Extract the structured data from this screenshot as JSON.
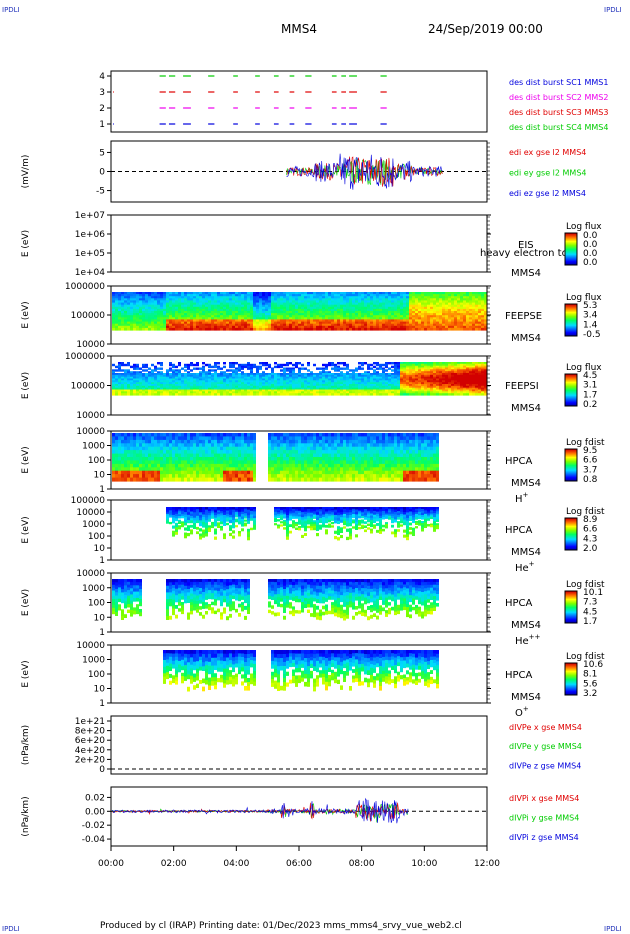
{
  "corner_label": "IPDLI",
  "header": {
    "spacecraft": "MMS4",
    "date": "24/Sep/2019 00:00"
  },
  "footer": {
    "text": "Produced by cl (IRAP)   Printing date: 01/Dec/2023   mms_mms4_srvy_vue_web2.cl"
  },
  "colors": {
    "red": "#e00000",
    "magenta": "#ee00ee",
    "green": "#00cc00",
    "blue": "#0000dd"
  },
  "chart_data": [
    {
      "type": "timeline",
      "title": "",
      "yticks": [
        "1",
        "2",
        "3",
        "4"
      ],
      "legend": [
        {
          "text": "des dist burst SC1 MMS1",
          "color": "#0000dd"
        },
        {
          "text": "des dist burst SC2 MMS2",
          "color": "#ee00ee"
        },
        {
          "text": "des dist burst SC3 MMS3",
          "color": "#e00000"
        },
        {
          "text": "des dist burst SC4 MMS4",
          "color": "#00cc00"
        }
      ],
      "segments_hours": [
        [
          1.55,
          1.75
        ],
        [
          1.85,
          2.05
        ],
        [
          2.3,
          2.55
        ],
        [
          3.1,
          3.3
        ],
        [
          3.9,
          4.05
        ],
        [
          4.6,
          4.75
        ],
        [
          5.2,
          5.35
        ],
        [
          5.7,
          5.85
        ],
        [
          6.2,
          6.4
        ],
        [
          7.05,
          7.2
        ],
        [
          7.35,
          7.5
        ],
        [
          7.6,
          7.85
        ],
        [
          8.6,
          8.8
        ]
      ]
    },
    {
      "type": "line",
      "ylabel": "(mV/m)",
      "yticks": [
        "5",
        "0",
        "-5"
      ],
      "ylim": [
        -8,
        8
      ],
      "legend": [
        {
          "text": "edi ex gse l2 MMS4",
          "color": "#e00000"
        },
        {
          "text": "edi ey gse l2 MMS4",
          "color": "#00cc00"
        },
        {
          "text": "edi ez gse l2 MMS4",
          "color": "#0000dd"
        }
      ],
      "active_hours": [
        5.6,
        10.6
      ]
    },
    {
      "type": "heatmap",
      "ylabel": "E (eV)",
      "yticks": [
        "1e+07",
        "1e+06",
        "1e+05",
        "1e+04"
      ],
      "instrument": "EIS",
      "overlay": "heavy electron to",
      "spacecraft": "MMS4",
      "colorbar_title": "Log flux",
      "colorbar_ticks": [
        "0.0",
        "0.0",
        "0.0",
        "0.0"
      ]
    },
    {
      "type": "heatmap",
      "ylabel": "E (eV)",
      "yticks": [
        "1000000",
        "100000",
        "10000"
      ],
      "instrument": "FEEPSE",
      "spacecraft": "MMS4",
      "colorbar_title": "Log flux",
      "colorbar_ticks": [
        "5.3",
        "3.4",
        "1.4",
        "-0.5"
      ]
    },
    {
      "type": "heatmap",
      "ylabel": "E (eV)",
      "yticks": [
        "1000000",
        "100000",
        "10000"
      ],
      "instrument": "FEEPSI",
      "spacecraft": "MMS4",
      "colorbar_title": "Log flux",
      "colorbar_ticks": [
        "4.5",
        "3.1",
        "1.7",
        "0.2"
      ]
    },
    {
      "type": "heatmap",
      "ylabel": "E (eV)",
      "yticks": [
        "10000",
        "1000",
        "100",
        "10",
        "1"
      ],
      "instrument": "HPCA",
      "spacecraft": "MMS4",
      "species": "H",
      "species_sup": "+",
      "colorbar_title": "Log fdist",
      "colorbar_ticks": [
        "9.5",
        "6.6",
        "3.7",
        "0.8"
      ]
    },
    {
      "type": "heatmap",
      "ylabel": "E (eV)",
      "yticks": [
        "100000",
        "10000",
        "1000",
        "100",
        "10",
        "1"
      ],
      "instrument": "HPCA",
      "spacecraft": "MMS4",
      "species": "He",
      "species_sup": "+",
      "colorbar_title": "Log fdist",
      "colorbar_ticks": [
        "8.9",
        "6.6",
        "4.3",
        "2.0"
      ]
    },
    {
      "type": "heatmap",
      "ylabel": "E (eV)",
      "yticks": [
        "10000",
        "1000",
        "100",
        "10",
        "1"
      ],
      "instrument": "HPCA",
      "spacecraft": "MMS4",
      "species": "He",
      "species_sup": "++",
      "colorbar_title": "Log fdist",
      "colorbar_ticks": [
        "10.1",
        "7.3",
        "4.5",
        "1.7"
      ]
    },
    {
      "type": "heatmap",
      "ylabel": "E (eV)",
      "yticks": [
        "10000",
        "1000",
        "100",
        "10",
        "1"
      ],
      "instrument": "HPCA",
      "spacecraft": "MMS4",
      "species": "O",
      "species_sup": "+",
      "colorbar_title": "Log fdist",
      "colorbar_ticks": [
        "10.6",
        "8.1",
        "5.6",
        "3.2"
      ]
    },
    {
      "type": "line",
      "ylabel": "(nPa/km)",
      "yticks": [
        "1e+21",
        "8e+20",
        "6e+20",
        "4e+20",
        "2e+20",
        "0"
      ],
      "legend": [
        {
          "text": "dIVPe x gse MMS4",
          "color": "#e00000"
        },
        {
          "text": "dIVPe y gse MMS4",
          "color": "#00cc00"
        },
        {
          "text": "dIVPe z gse MMS4",
          "color": "#0000dd"
        }
      ]
    },
    {
      "type": "line",
      "ylabel": "(nPa/km)",
      "yticks": [
        "0.02",
        "0.00",
        "-0.02",
        "-0.04"
      ],
      "ylim": [
        -0.05,
        0.035
      ],
      "legend": [
        {
          "text": "dIVPi x gse MMS4",
          "color": "#e00000"
        },
        {
          "text": "dIVPi y gse MMS4",
          "color": "#00cc00"
        },
        {
          "text": "dIVPi z gse MMS4",
          "color": "#0000dd"
        }
      ],
      "active_hours": [
        5.0,
        9.5
      ]
    }
  ],
  "xaxis": {
    "ticks": [
      "00:00",
      "02:00",
      "04:00",
      "06:00",
      "08:00",
      "10:00",
      "12:00"
    ],
    "range_hours": [
      0,
      12
    ]
  }
}
